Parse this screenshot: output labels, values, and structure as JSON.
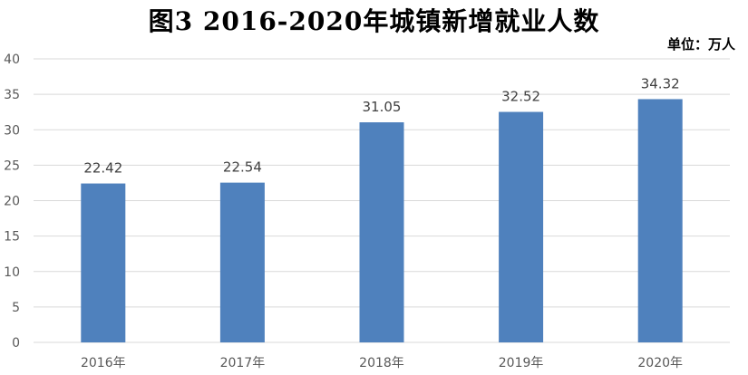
{
  "title": "图3   2016-2020年城镇新增就业人数",
  "unit_label": "单位：万人",
  "chart_data": {
    "type": "bar",
    "title": "图3   2016-2020年城镇新增就业人数",
    "unit": "单位：万人",
    "categories": [
      "2016年",
      "2017年",
      "2018年",
      "2019年",
      "2020年"
    ],
    "values": [
      22.42,
      22.54,
      31.05,
      32.52,
      34.32
    ],
    "value_labels": [
      "22.42",
      "22.54",
      "31.05",
      "32.52",
      "34.32"
    ],
    "ylim": [
      0,
      40
    ],
    "yticks": [
      "0",
      "5",
      "10",
      "15",
      "20",
      "25",
      "30",
      "35",
      "40"
    ],
    "grid": true,
    "bar_color": "#4F81BD",
    "grid_color": "#D9D9D9"
  }
}
